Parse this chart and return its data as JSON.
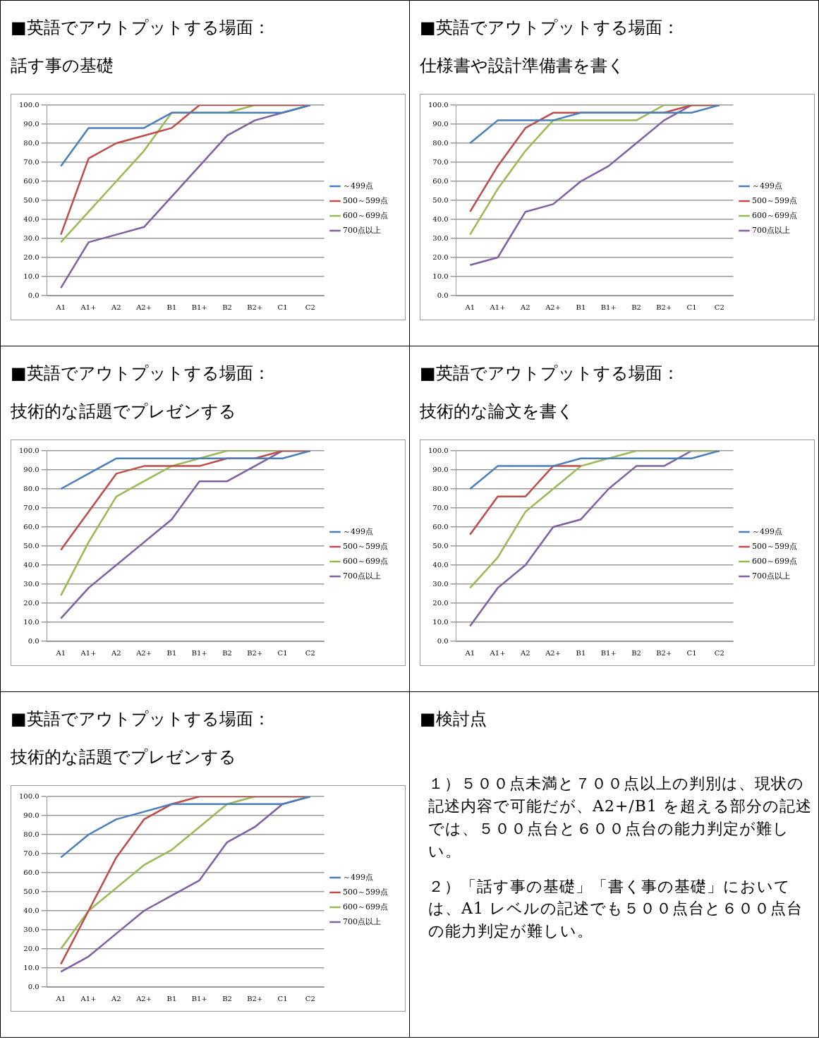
{
  "chart_data": [
    {
      "type": "line",
      "title": "■英語でアウトプットする場面：",
      "subtitle": "話す事の基礎",
      "categories": [
        "A1",
        "A1+",
        "A2",
        "A2+",
        "B1",
        "B1+",
        "B2",
        "B2+",
        "C1",
        "C2"
      ],
      "ylim": [
        0,
        100
      ],
      "yticks": [
        {
          "value": 0,
          "label": "0.0"
        },
        {
          "value": 10,
          "label": "10.0"
        },
        {
          "value": 20,
          "label": "20.0"
        },
        {
          "value": 30,
          "label": "30.0"
        },
        {
          "value": 40,
          "label": "40.0"
        },
        {
          "value": 50,
          "label": "50.0"
        },
        {
          "value": 60,
          "label": "60.0"
        },
        {
          "value": 70,
          "label": "70.0"
        },
        {
          "value": 80,
          "label": "80.0"
        },
        {
          "value": 90,
          "label": "90.0"
        },
        {
          "value": 100,
          "label": "100.0"
        }
      ],
      "grid": "y",
      "legend": "right",
      "marker": "none",
      "series": [
        {
          "name": "～499点",
          "color": "#4a7ebb",
          "values": [
            68,
            88,
            88,
            88,
            96,
            96,
            96,
            96,
            96,
            100
          ]
        },
        {
          "name": "500～599点",
          "color": "#be4b48",
          "values": [
            32,
            72,
            80,
            84,
            88,
            100,
            100,
            100,
            100,
            100
          ]
        },
        {
          "name": "600～699点",
          "color": "#98b954",
          "values": [
            28,
            44,
            60,
            76,
            96,
            96,
            96,
            100,
            100,
            100
          ]
        },
        {
          "name": "700点以上",
          "color": "#7d60a0",
          "values": [
            4,
            28,
            32,
            36,
            52,
            68,
            84,
            92,
            96,
            100
          ]
        }
      ]
    },
    {
      "type": "line",
      "title": "■英語でアウトプットする場面：",
      "subtitle": "仕様書や設計準備書を書く",
      "categories": [
        "A1",
        "A1+",
        "A2",
        "A2+",
        "B1",
        "B1+",
        "B2",
        "B2+",
        "C1",
        "C2"
      ],
      "ylim": [
        0,
        100
      ],
      "yticks": [
        {
          "value": 0,
          "label": "0.0"
        },
        {
          "value": 10,
          "label": "10.0"
        },
        {
          "value": 20,
          "label": "20.0"
        },
        {
          "value": 30,
          "label": "30.0"
        },
        {
          "value": 40,
          "label": "40.0"
        },
        {
          "value": 50,
          "label": "50.0"
        },
        {
          "value": 60,
          "label": "60.0"
        },
        {
          "value": 70,
          "label": "70.0"
        },
        {
          "value": 80,
          "label": "80.0"
        },
        {
          "value": 90,
          "label": "90.0"
        },
        {
          "value": 100,
          "label": "100.0"
        }
      ],
      "grid": "y",
      "legend": "right",
      "marker": "none",
      "series": [
        {
          "name": "～499点",
          "color": "#4a7ebb",
          "values": [
            80,
            92,
            92,
            92,
            96,
            96,
            96,
            96,
            96,
            100
          ]
        },
        {
          "name": "500～599点",
          "color": "#be4b48",
          "values": [
            44,
            68,
            88,
            96,
            96,
            96,
            96,
            96,
            100,
            100
          ]
        },
        {
          "name": "600～699点",
          "color": "#98b954",
          "values": [
            32,
            56,
            76,
            92,
            92,
            92,
            92,
            100,
            100,
            100
          ]
        },
        {
          "name": "700点以上",
          "color": "#7d60a0",
          "values": [
            16,
            20,
            44,
            48,
            60,
            68,
            80,
            92,
            100,
            100
          ]
        }
      ]
    },
    {
      "type": "line",
      "title": "■英語でアウトプットする場面：",
      "subtitle": "技術的な話題でプレゼンする",
      "categories": [
        "A1",
        "A1+",
        "A2",
        "A2+",
        "B1",
        "B1+",
        "B2",
        "B2+",
        "C1",
        "C2"
      ],
      "ylim": [
        0,
        100
      ],
      "yticks": [
        {
          "value": 0,
          "label": "0.0"
        },
        {
          "value": 10,
          "label": "10.0"
        },
        {
          "value": 20,
          "label": "20.0"
        },
        {
          "value": 30,
          "label": "30.0"
        },
        {
          "value": 40,
          "label": "40.0"
        },
        {
          "value": 50,
          "label": "50.0"
        },
        {
          "value": 60,
          "label": "60.0"
        },
        {
          "value": 70,
          "label": "70.0"
        },
        {
          "value": 80,
          "label": "80.0"
        },
        {
          "value": 90,
          "label": "90.0"
        },
        {
          "value": 100,
          "label": "100.0"
        }
      ],
      "grid": "y",
      "legend": "right",
      "marker": "none",
      "series": [
        {
          "name": "～499点",
          "color": "#4a7ebb",
          "values": [
            80,
            88,
            96,
            96,
            96,
            96,
            96,
            96,
            96,
            100
          ]
        },
        {
          "name": "500～599点",
          "color": "#be4b48",
          "values": [
            48,
            68,
            88,
            92,
            92,
            92,
            96,
            96,
            100,
            100
          ]
        },
        {
          "name": "600～699点",
          "color": "#98b954",
          "values": [
            24,
            52,
            76,
            84,
            92,
            96,
            100,
            100,
            100,
            100
          ]
        },
        {
          "name": "700点以上",
          "color": "#7d60a0",
          "values": [
            12,
            28,
            40,
            52,
            64,
            84,
            84,
            92,
            100,
            100
          ]
        }
      ]
    },
    {
      "type": "line",
      "title": "■英語でアウトプットする場面：",
      "subtitle": "技術的な論文を書く",
      "categories": [
        "A1",
        "A1+",
        "A2",
        "A2+",
        "B1",
        "B1+",
        "B2",
        "B2+",
        "C1",
        "C2"
      ],
      "ylim": [
        0,
        100
      ],
      "yticks": [
        {
          "value": 0,
          "label": "0.0"
        },
        {
          "value": 10,
          "label": "10.0"
        },
        {
          "value": 20,
          "label": "20.0"
        },
        {
          "value": 30,
          "label": "30.0"
        },
        {
          "value": 40,
          "label": "40.0"
        },
        {
          "value": 50,
          "label": "50.0"
        },
        {
          "value": 60,
          "label": "60.0"
        },
        {
          "value": 70,
          "label": "70.0"
        },
        {
          "value": 80,
          "label": "80.0"
        },
        {
          "value": 90,
          "label": "90.0"
        },
        {
          "value": 100,
          "label": "100.0"
        }
      ],
      "grid": "y",
      "legend": "right",
      "marker": "none",
      "series": [
        {
          "name": "～499点",
          "color": "#4a7ebb",
          "values": [
            80,
            92,
            92,
            92,
            96,
            96,
            96,
            96,
            96,
            100
          ]
        },
        {
          "name": "500～599点",
          "color": "#be4b48",
          "values": [
            56,
            76,
            76,
            92,
            92,
            null,
            null,
            null,
            null,
            null
          ]
        },
        {
          "name": "600～699点",
          "color": "#98b954",
          "values": [
            28,
            44,
            68,
            80,
            92,
            96,
            100,
            100,
            100,
            100
          ]
        },
        {
          "name": "700点以上",
          "color": "#7d60a0",
          "values": [
            8,
            28,
            40,
            60,
            64,
            80,
            92,
            92,
            100,
            100
          ]
        }
      ]
    },
    {
      "type": "line",
      "title": "■英語でアウトプットする場面：",
      "subtitle": "技術的な話題でプレゼンする",
      "categories": [
        "A1",
        "A1+",
        "A2",
        "A2+",
        "B1",
        "B1+",
        "B2",
        "B2+",
        "C1",
        "C2"
      ],
      "ylim": [
        0,
        100
      ],
      "yticks": [
        {
          "value": 0,
          "label": "0.0"
        },
        {
          "value": 10,
          "label": "10.0"
        },
        {
          "value": 20,
          "label": "20.0"
        },
        {
          "value": 30,
          "label": "30.0"
        },
        {
          "value": 40,
          "label": "40.0"
        },
        {
          "value": 50,
          "label": "50.0"
        },
        {
          "value": 60,
          "label": "60.0"
        },
        {
          "value": 70,
          "label": "70.0"
        },
        {
          "value": 80,
          "label": "80.0"
        },
        {
          "value": 90,
          "label": "90.0"
        },
        {
          "value": 100,
          "label": "100.0"
        }
      ],
      "grid": "y",
      "legend": "right",
      "marker": "none",
      "series": [
        {
          "name": "～499点",
          "color": "#4a7ebb",
          "values": [
            68,
            80,
            88,
            92,
            96,
            96,
            96,
            96,
            96,
            100
          ]
        },
        {
          "name": "500～599点",
          "color": "#be4b48",
          "values": [
            12,
            40,
            68,
            88,
            96,
            100,
            100,
            100,
            100,
            100
          ]
        },
        {
          "name": "600～699点",
          "color": "#98b954",
          "values": [
            20,
            40,
            52,
            64,
            72,
            84,
            96,
            100,
            100,
            100
          ]
        },
        {
          "name": "700点以上",
          "color": "#7d60a0",
          "values": [
            8,
            16,
            28,
            40,
            48,
            56,
            76,
            84,
            96,
            100
          ]
        }
      ]
    },
    {
      "type": "other",
      "title": "■検討点",
      "annotations": [
        "１）５００点未満と７００点以上の判別は、現状の記述内容で可能だが、A2+/B1 を超える部分の記述では、５００点台と６００点台の能力判定が難しい。",
        "２）「話す事の基礎」「書く事の基礎」においては、A1 レベルの記述でも５００点台と６００点台の能力判定が難しい。"
      ]
    }
  ]
}
